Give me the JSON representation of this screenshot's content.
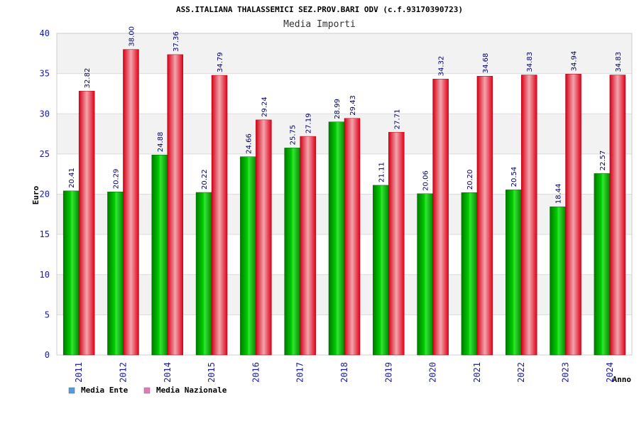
{
  "chart_data": {
    "type": "bar",
    "title": "ASS.ITALIANA THALASSEMICI SEZ.PROV.BARI ODV (c.f.93170390723)",
    "subtitle": "Media Importi",
    "xlabel": "Anno",
    "ylabel": "Euro",
    "ylim": [
      0,
      40
    ],
    "yticks": [
      "0",
      "5",
      "10",
      "15",
      "20",
      "25",
      "30",
      "35",
      "40"
    ],
    "grid": true,
    "legend_position": "bottom-left",
    "categories": [
      "2011",
      "2012",
      "2014",
      "2015",
      "2016",
      "2017",
      "2018",
      "2019",
      "2020",
      "2021",
      "2022",
      "2023",
      "2024"
    ],
    "series": [
      {
        "name": "Media Ente",
        "color": "#00a800",
        "legend_color": "#5b9bd5",
        "values": [
          20.41,
          20.29,
          24.88,
          20.22,
          24.66,
          25.75,
          28.99,
          21.11,
          20.06,
          20.2,
          20.54,
          18.44,
          22.57
        ],
        "labels": [
          "20.41",
          "20.29",
          "24.88",
          "20.22",
          "24.66",
          "25.75",
          "28.99",
          "21.11",
          "20.06",
          "20.20",
          "20.54",
          "18.44",
          "22.57"
        ]
      },
      {
        "name": "Media Nazionale",
        "color": "#e8001a",
        "legend_color": "#d87fb8",
        "values": [
          32.82,
          38.0,
          37.36,
          34.79,
          29.24,
          27.19,
          29.43,
          27.71,
          34.32,
          34.68,
          34.83,
          34.94,
          34.83
        ],
        "labels": [
          "32.82",
          "38.00",
          "37.36",
          "34.79",
          "29.24",
          "27.19",
          "29.43",
          "27.71",
          "34.32",
          "34.68",
          "34.83",
          "34.94",
          "34.83"
        ]
      }
    ]
  }
}
